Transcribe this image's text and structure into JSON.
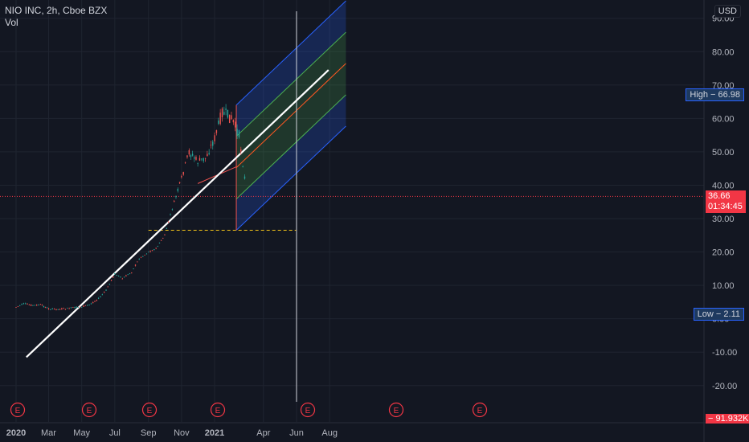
{
  "header": {
    "symbol_line": "NIO INC, 2h, Cboe BZX",
    "indicator": "Vol",
    "currency": "USD"
  },
  "price_tags": {
    "high": "High − 66.98",
    "low": "Low − 2.11",
    "last_price": "36.66",
    "countdown": "01:34:45",
    "volume": "− 91.932K"
  },
  "events": [
    "E",
    "E",
    "E",
    "E",
    "E",
    "E",
    "E"
  ],
  "colors": {
    "background": "#131722",
    "grid": "#1f2430",
    "candle_up": "#26a69a",
    "candle_down": "#ef5350",
    "trendline": "#ffffff",
    "pitchfork_outer": "#2962ff",
    "pitchfork_inner": "#4caf50",
    "pitchfork_median": "#ff5722",
    "support_line": "#f5c518",
    "last_price": "#f23645"
  },
  "chart_data": {
    "type": "line",
    "title": "NIO INC, 2h, Cboe BZX",
    "x_ticks": [
      "2020",
      "Mar",
      "May",
      "Jul",
      "Sep",
      "Nov",
      "2021",
      "Apr",
      "Jun",
      "Aug"
    ],
    "y_ticks": [
      "90.00",
      "80.00",
      "70.00",
      "60.00",
      "50.00",
      "40.00",
      "30.00",
      "20.00",
      "10.00",
      "0.00",
      "-10.00",
      "-20.00"
    ],
    "ylim": [
      -25,
      95
    ],
    "grid": true,
    "series": [
      {
        "values_x": [
          "2020-01-01",
          "2020-01-15",
          "2020-02-01",
          "2020-02-15",
          "2020-03-01",
          "2020-03-15",
          "2020-04-01",
          "2020-04-15",
          "2020-05-01",
          "2020-05-15",
          "2020-06-01",
          "2020-06-15",
          "2020-07-01",
          "2020-07-15",
          "2020-08-01",
          "2020-08-15",
          "2020-09-01",
          "2020-09-15",
          "2020-10-01",
          "2020-10-15",
          "2020-11-01",
          "2020-11-15",
          "2020-12-01",
          "2020-12-15",
          "2021-01-01",
          "2021-01-15",
          "2021-02-01",
          "2021-02-15",
          "2021-03-01"
        ],
        "values_y": [
          3.5,
          4.5,
          4.0,
          4.2,
          3.0,
          2.8,
          3.0,
          3.3,
          3.6,
          4.2,
          6.0,
          8.5,
          13.5,
          12.0,
          14.0,
          18.0,
          20.0,
          21.0,
          25.0,
          33.0,
          42.0,
          50.0,
          47.0,
          48.0,
          54.0,
          62.0,
          60.0,
          55.0,
          38.0
        ]
      }
    ],
    "annotations": {
      "trendline": {
        "from": [
          "2020-01-20",
          -11.5
        ],
        "to": [
          "2021-07-30",
          74.5
        ]
      },
      "support_level": {
        "y": 26.5,
        "from": "2020-09-01",
        "to": "2021-05-31"
      },
      "pitchfork": {
        "pivot_x": "2021-02-10",
        "top": 64.0,
        "bottom": 26.5,
        "end_x": "2021-08-31"
      },
      "vertical_marker": "2021-06-01",
      "last_price_line": 36.66
    }
  }
}
